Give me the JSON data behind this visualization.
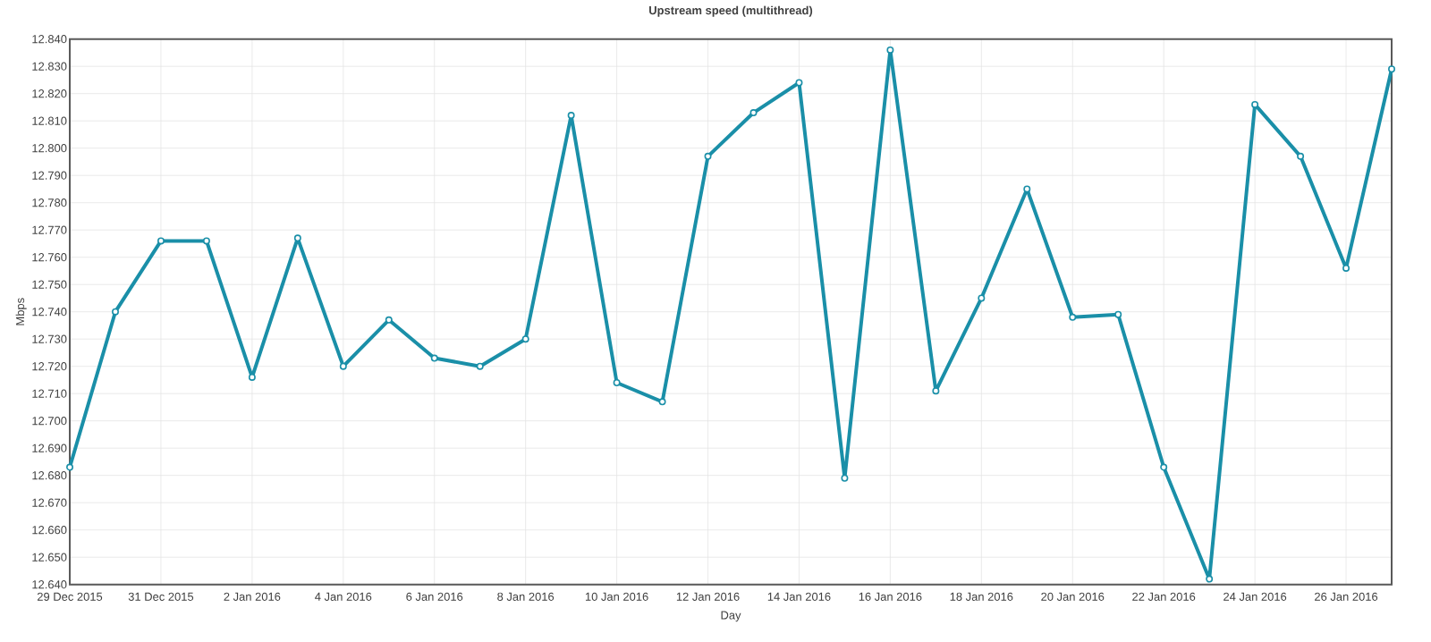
{
  "chart_data": {
    "type": "line",
    "title": "Upstream speed (multithread)",
    "xlabel": "Day",
    "ylabel": "Mbps",
    "x": [
      "2015-12-29",
      "2015-12-30",
      "2015-12-31",
      "2016-01-01",
      "2016-01-02",
      "2016-01-03",
      "2016-01-04",
      "2016-01-05",
      "2016-01-06",
      "2016-01-07",
      "2016-01-08",
      "2016-01-09",
      "2016-01-10",
      "2016-01-11",
      "2016-01-12",
      "2016-01-13",
      "2016-01-14",
      "2016-01-15",
      "2016-01-16",
      "2016-01-17",
      "2016-01-18",
      "2016-01-19",
      "2016-01-20",
      "2016-01-21",
      "2016-01-22",
      "2016-01-23",
      "2016-01-24",
      "2016-01-25",
      "2016-01-26",
      "2016-01-27"
    ],
    "series": [
      {
        "color": "#1a8fa8",
        "values": [
          12.683,
          12.74,
          12.766,
          12.766,
          12.716,
          12.767,
          12.72,
          12.737,
          12.723,
          12.72,
          12.73,
          12.812,
          12.714,
          12.707,
          12.797,
          12.813,
          12.824,
          12.679,
          12.836,
          12.711,
          12.745,
          12.785,
          12.738,
          12.739,
          12.683,
          12.642,
          12.816,
          12.797,
          12.756,
          12.829
        ]
      }
    ],
    "xlim": [
      "2015-12-29",
      "2016-01-27"
    ],
    "xticks": [
      {
        "value": "2015-12-29",
        "label": "29 Dec 2015"
      },
      {
        "value": "2015-12-31",
        "label": "31 Dec 2015"
      },
      {
        "value": "2016-01-02",
        "label": "2 Jan 2016"
      },
      {
        "value": "2016-01-04",
        "label": "4 Jan 2016"
      },
      {
        "value": "2016-01-06",
        "label": "6 Jan 2016"
      },
      {
        "value": "2016-01-08",
        "label": "8 Jan 2016"
      },
      {
        "value": "2016-01-10",
        "label": "10 Jan 2016"
      },
      {
        "value": "2016-01-12",
        "label": "12 Jan 2016"
      },
      {
        "value": "2016-01-14",
        "label": "14 Jan 2016"
      },
      {
        "value": "2016-01-16",
        "label": "16 Jan 2016"
      },
      {
        "value": "2016-01-18",
        "label": "18 Jan 2016"
      },
      {
        "value": "2016-01-20",
        "label": "20 Jan 2016"
      },
      {
        "value": "2016-01-22",
        "label": "22 Jan 2016"
      },
      {
        "value": "2016-01-24",
        "label": "24 Jan 2016"
      },
      {
        "value": "2016-01-26",
        "label": "26 Jan 2016"
      }
    ],
    "ylim": [
      12.64,
      12.84
    ],
    "yticks": [
      {
        "value": 12.64,
        "label": "12.640"
      },
      {
        "value": 12.65,
        "label": "12.650"
      },
      {
        "value": 12.66,
        "label": "12.660"
      },
      {
        "value": 12.67,
        "label": "12.670"
      },
      {
        "value": 12.68,
        "label": "12.680"
      },
      {
        "value": 12.69,
        "label": "12.690"
      },
      {
        "value": 12.7,
        "label": "12.700"
      },
      {
        "value": 12.71,
        "label": "12.710"
      },
      {
        "value": 12.72,
        "label": "12.720"
      },
      {
        "value": 12.73,
        "label": "12.730"
      },
      {
        "value": 12.74,
        "label": "12.740"
      },
      {
        "value": 12.75,
        "label": "12.750"
      },
      {
        "value": 12.76,
        "label": "12.760"
      },
      {
        "value": 12.77,
        "label": "12.770"
      },
      {
        "value": 12.78,
        "label": "12.780"
      },
      {
        "value": 12.79,
        "label": "12.790"
      },
      {
        "value": 12.8,
        "label": "12.800"
      },
      {
        "value": 12.81,
        "label": "12.810"
      },
      {
        "value": 12.82,
        "label": "12.820"
      },
      {
        "value": 12.83,
        "label": "12.830"
      },
      {
        "value": 12.84,
        "label": "12.840"
      }
    ],
    "grid": true,
    "marker": "circle",
    "line_style": "solid"
  }
}
